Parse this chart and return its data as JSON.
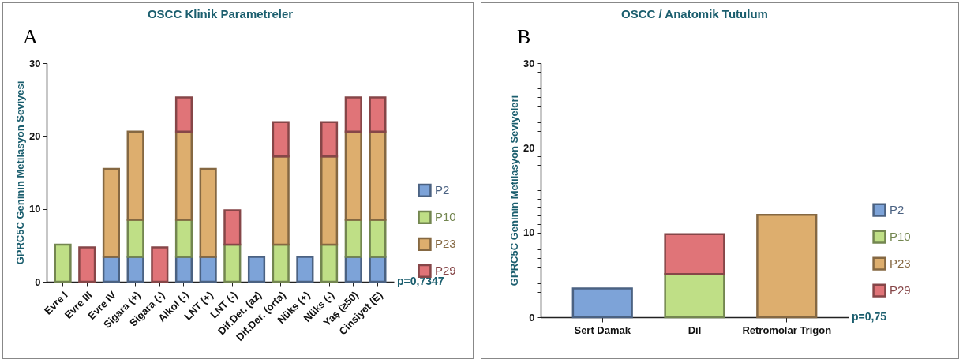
{
  "chart_data": [
    {
      "type": "bar",
      "title": "OSCC Klinik Parametreler",
      "ylabel": "GPRC5C Geninin Metilasyon Seviyesi",
      "categories": [
        "Evre I",
        "Evre III",
        "Evre IV",
        "Sigara (+)",
        "Sigara (-)",
        "Alkol (-)",
        "LNT (+)",
        "LNT (-)",
        "Dif.Der. (az)",
        "Dif.Der. (orta)",
        "Nüks (+)",
        "Nüks (-)",
        "Yaş (≥50)",
        "Cinsiyet (E)"
      ],
      "stacked": true,
      "series": [
        {
          "name": "P2",
          "color": "#7da3d8",
          "values": [
            null,
            null,
            3.4,
            3.4,
            null,
            3.4,
            3.4,
            null,
            3.4,
            null,
            3.4,
            null,
            3.4,
            3.4
          ]
        },
        {
          "name": "P10",
          "color": "#bfdf86",
          "values": [
            5.1,
            null,
            null,
            5.1,
            null,
            5.1,
            null,
            5.1,
            null,
            5.1,
            null,
            5.1,
            5.1,
            5.1
          ]
        },
        {
          "name": "P23",
          "color": "#ddae6e",
          "values": [
            null,
            null,
            12.1,
            12.1,
            null,
            12.1,
            12.1,
            null,
            null,
            12.1,
            null,
            12.1,
            12.1,
            12.1
          ]
        },
        {
          "name": "P29",
          "color": "#e07478",
          "values": [
            null,
            4.7,
            null,
            null,
            4.7,
            4.7,
            null,
            4.7,
            null,
            4.7,
            null,
            4.7,
            4.7,
            4.7
          ]
        }
      ],
      "ylim": [
        0,
        30
      ],
      "yticks": [
        0,
        10,
        20,
        30
      ],
      "legend": "right",
      "grid": false,
      "annotations": [
        "A",
        "p=0,7347"
      ]
    },
    {
      "type": "bar",
      "title": "OSCC / Anatomik Tutulum",
      "ylabel": "GPRC5C Geninin Metilasyon Seviyeleri",
      "categories": [
        "Sert Damak",
        "Dil",
        "Retromolar Trigon"
      ],
      "stacked": true,
      "series": [
        {
          "name": "P2",
          "color": "#7da3d8",
          "values": [
            3.4,
            null,
            null
          ]
        },
        {
          "name": "P10",
          "color": "#bfdf86",
          "values": [
            null,
            5.1,
            null
          ]
        },
        {
          "name": "P23",
          "color": "#ddae6e",
          "values": [
            null,
            null,
            12.1
          ]
        },
        {
          "name": "P29",
          "color": "#e07478",
          "values": [
            null,
            4.7,
            null
          ]
        }
      ],
      "ylim": [
        0,
        30
      ],
      "yticks": [
        0,
        {
          "value": 1,
          "label": null
        },
        {
          "value": 2,
          "label": null
        },
        {
          "value": 3,
          "label": null
        },
        {
          "value": 4,
          "label": null
        },
        {
          "value": 5,
          "label": null
        },
        {
          "value": 6,
          "label": null
        },
        {
          "value": 7,
          "label": null
        },
        {
          "value": 8,
          "label": null
        },
        {
          "value": 9,
          "label": null
        },
        10,
        {
          "value": 11,
          "label": null
        },
        {
          "value": 12,
          "label": null
        },
        {
          "value": 13,
          "label": null
        },
        {
          "value": 14,
          "label": null
        },
        {
          "value": 15,
          "label": null
        },
        {
          "value": 16,
          "label": null
        },
        {
          "value": 17,
          "label": null
        },
        {
          "value": 18,
          "label": null
        },
        {
          "value": 19,
          "label": null
        },
        20,
        {
          "value": 21,
          "label": null
        },
        {
          "value": 22,
          "label": null
        },
        {
          "value": 23,
          "label": null
        },
        {
          "value": 24,
          "label": null
        },
        {
          "value": 25,
          "label": null
        },
        {
          "value": 26,
          "label": null
        },
        {
          "value": 27,
          "label": null
        },
        {
          "value": 28,
          "label": null
        },
        {
          "value": 29,
          "label": null
        },
        30
      ],
      "legend": "right",
      "grid": false,
      "annotations": [
        "B",
        "p=0,75"
      ]
    }
  ]
}
